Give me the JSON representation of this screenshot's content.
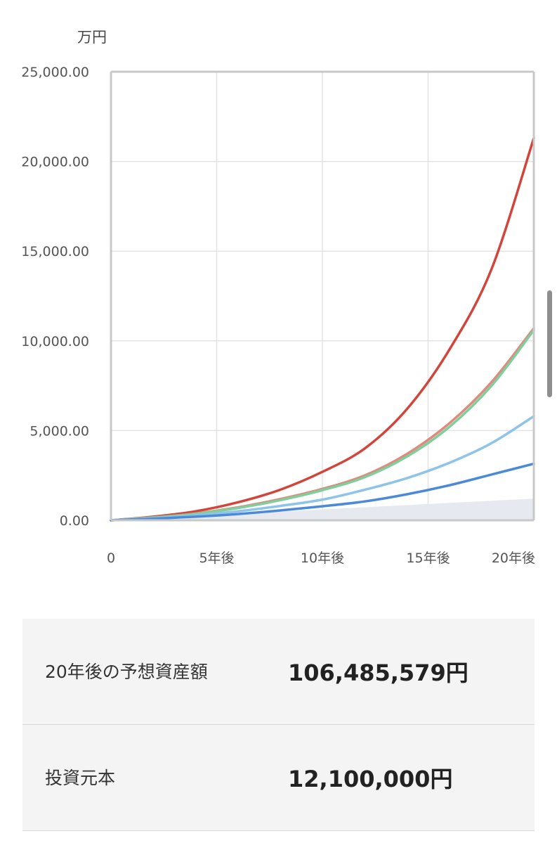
{
  "chart_data": {
    "type": "line",
    "y_unit": "万円",
    "ylim": [
      0,
      25000
    ],
    "xlim": [
      0,
      20
    ],
    "y_ticks": [
      {
        "value": 0,
        "label": "0.00"
      },
      {
        "value": 5000,
        "label": "5,000.00"
      },
      {
        "value": 10000,
        "label": "10,000.00"
      },
      {
        "value": 15000,
        "label": "15,000.00"
      },
      {
        "value": 20000,
        "label": "20,000.00"
      },
      {
        "value": 25000,
        "label": "25,000.00"
      }
    ],
    "x_ticks": [
      {
        "value": 0,
        "label": "0"
      },
      {
        "value": 5,
        "label": "5年後"
      },
      {
        "value": 10,
        "label": "10年後"
      },
      {
        "value": 15,
        "label": "15年後"
      },
      {
        "value": 20,
        "label": "20年後"
      }
    ],
    "grid": true,
    "x": [
      0,
      2,
      4,
      6,
      8,
      10,
      12,
      14,
      16,
      18,
      20
    ],
    "series": [
      {
        "color": "#d1453b",
        "values": [
          0,
          200,
          500,
          1000,
          1700,
          2700,
          4000,
          6200,
          9500,
          14000,
          21300
        ]
      },
      {
        "color": "#e08a7e",
        "values": [
          0,
          160,
          380,
          720,
          1180,
          1750,
          2500,
          3700,
          5400,
          7700,
          10700
        ]
      },
      {
        "color": "#7dcf9b",
        "values": [
          0,
          150,
          360,
          680,
          1120,
          1680,
          2400,
          3550,
          5200,
          7500,
          10600
        ]
      },
      {
        "color": "#8ec3ea",
        "values": [
          0,
          120,
          280,
          500,
          800,
          1150,
          1700,
          2350,
          3200,
          4300,
          5800
        ]
      },
      {
        "color": "#4a8ad9",
        "values": [
          0,
          90,
          200,
          350,
          550,
          780,
          1050,
          1450,
          1950,
          2550,
          3150
        ]
      }
    ],
    "principal_area": {
      "color": "#e6eaf0",
      "values": [
        0,
        1210
      ]
    }
  },
  "summary": [
    {
      "label": "20年後の予想資産額",
      "value": "106,485,579円"
    },
    {
      "label": "投資元本",
      "value": "12,100,000円"
    }
  ]
}
